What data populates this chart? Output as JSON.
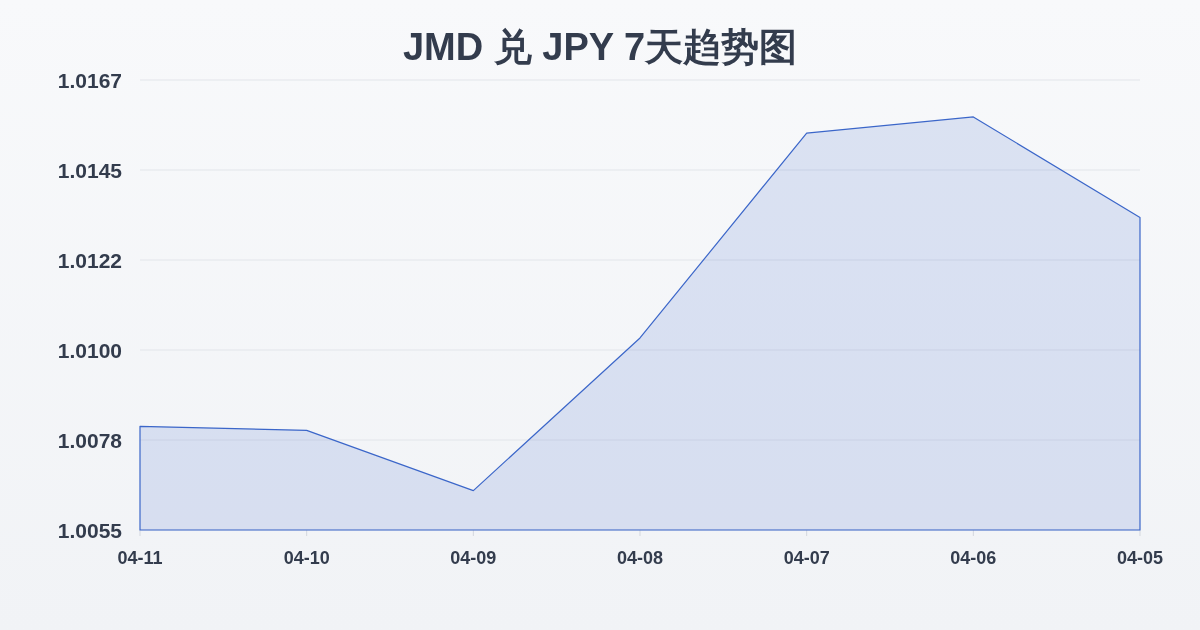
{
  "chart_data": {
    "type": "area",
    "title": "JMD 兑 JPY 7天趋势图",
    "categories": [
      "04-11",
      "04-10",
      "04-09",
      "04-08",
      "04-07",
      "04-06",
      "04-05"
    ],
    "series": [
      {
        "color": "#3b66c9",
        "values": [
          1.0081,
          1.008,
          1.0065,
          1.0103,
          1.0154,
          1.0158,
          1.0133
        ]
      }
    ],
    "ylim": [
      1.00552,
      1.01672
    ],
    "yticks": [
      {
        "value": 1.00552,
        "label": "1.0055"
      },
      {
        "value": 1.00776,
        "label": "1.0078"
      },
      {
        "value": 1.01,
        "label": "1.0100"
      },
      {
        "value": 1.01224,
        "label": "1.0122"
      },
      {
        "value": 1.01448,
        "label": "1.0145"
      },
      {
        "value": 1.01672,
        "label": "1.0167"
      }
    ],
    "grid": "y"
  }
}
